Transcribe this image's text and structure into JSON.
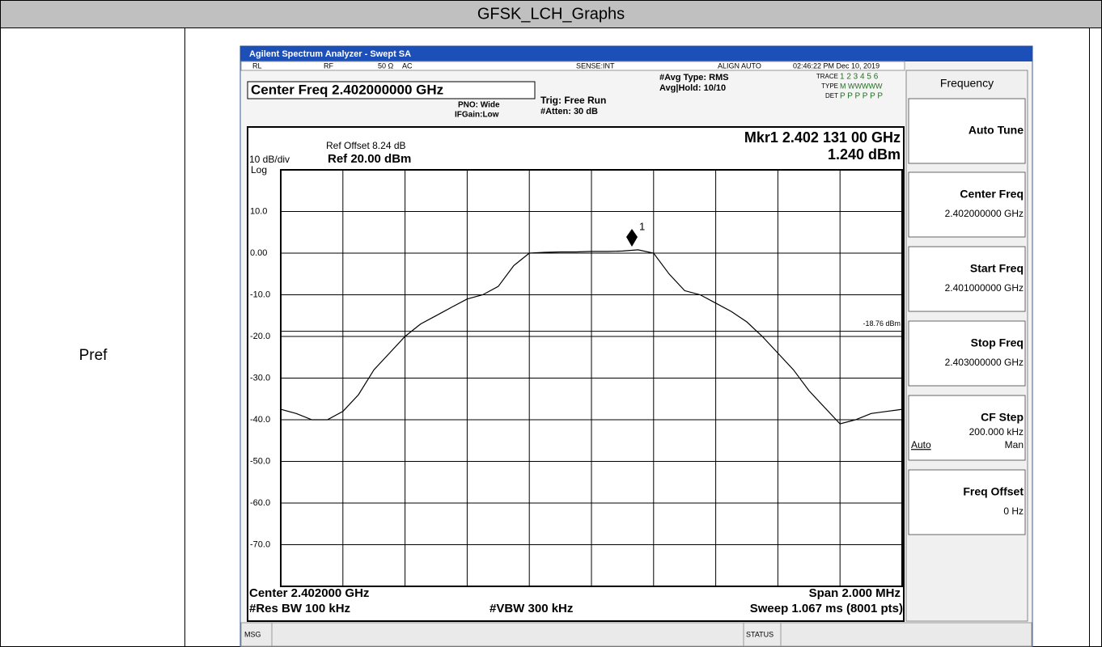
{
  "header": {
    "title": "GFSK_LCH_Graphs"
  },
  "row": {
    "label": "Pref"
  },
  "screen": {
    "window_title": "Agilent Spectrum Analyzer - Swept SA",
    "status": {
      "rl": "RL",
      "rf": "RF",
      "impedance": "50 Ω",
      "coupling": "AC",
      "sense": "SENSE:INT",
      "align": "ALIGN AUTO",
      "datetime": "02:46:22 PM Dec 10, 2019"
    },
    "settings": {
      "center_freq": "Center Freq 2.402000000 GHz",
      "pno": "PNO: Wide",
      "ifgain": "IFGain:Low",
      "trig": "Trig: Free Run",
      "atten": "#Atten: 30 dB",
      "avg_type": "#Avg Type: RMS",
      "avg_hold": "Avg|Hold: 10/10",
      "trace_label": "TRACE",
      "trace_nums": "1 2 3 4 5 6",
      "type_label": "TYPE",
      "type_vals": "M WWWWW",
      "det_label": "DET",
      "det_vals": "P P P P P P"
    },
    "plot": {
      "ref_offset": "Ref Offset 8.24 dB",
      "scale": "10 dB/div",
      "log": "Log",
      "ref": "Ref 20.00 dBm",
      "marker_label": "Mkr1 2.402 131 00 GHz",
      "marker_value": "1.240 dBm",
      "marker_id": "1",
      "ylim": [
        -80,
        20
      ],
      "yticks": [
        {
          "value": 10,
          "label": "10.0"
        },
        {
          "value": 0,
          "label": "0.00"
        },
        {
          "value": -10,
          "label": "-10.0"
        },
        {
          "value": -20,
          "label": "-20.0"
        },
        {
          "value": -30,
          "label": "-30.0"
        },
        {
          "value": -40,
          "label": "-40.0"
        },
        {
          "value": -50,
          "label": "-50.0"
        },
        {
          "value": -60,
          "label": "-60.0"
        },
        {
          "value": -70,
          "label": "-70.0"
        }
      ],
      "display_line": {
        "value": -18.76,
        "label": "-18.76 dBm"
      },
      "trace": [
        -37.5,
        -38.5,
        -40,
        -40,
        -38,
        -34,
        -28,
        -24,
        -20,
        -17,
        -15,
        -13,
        -11,
        -10,
        -8,
        -3,
        0,
        0.2,
        0.3,
        0.3,
        0.4,
        0.4,
        0.5,
        0.8,
        0,
        -5,
        -9,
        -10,
        -12,
        -14,
        -16.5,
        -20,
        -24,
        -28,
        -33,
        -37,
        -41,
        -40,
        -38.5,
        -38,
        -37.5
      ],
      "center": "Center 2.402000 GHz",
      "span": "Span 2.000 MHz",
      "rbw": "#Res BW 100 kHz",
      "vbw": "#VBW 300 kHz",
      "sweep": "Sweep  1.067 ms (8001 pts)"
    },
    "softkeys": {
      "menu": "Frequency",
      "keys": [
        {
          "label": "Auto Tune"
        },
        {
          "label": "Center Freq",
          "value": "2.402000000 GHz"
        },
        {
          "label": "Start Freq",
          "value": "2.401000000 GHz"
        },
        {
          "label": "Stop Freq",
          "value": "2.403000000 GHz"
        },
        {
          "label": "CF Step",
          "value": "200.000 kHz",
          "options": [
            "Auto",
            "Man"
          ]
        },
        {
          "label": "Freq Offset",
          "value": "0 Hz"
        }
      ]
    },
    "footer": {
      "msg": "MSG",
      "status": "STATUS"
    }
  }
}
